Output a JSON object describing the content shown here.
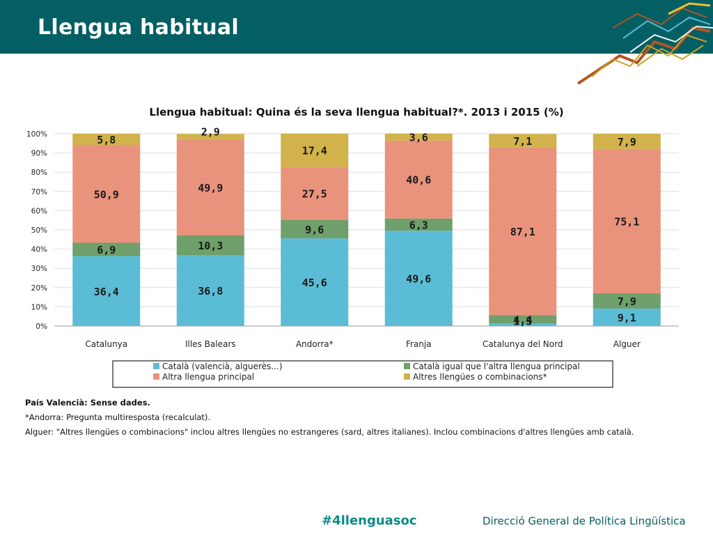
{
  "header": {
    "title": "Llengua habitual"
  },
  "colors": {
    "header_bg": "#035f64",
    "catala": "#5bbcd6",
    "catala_igual": "#6f9f6a",
    "altra": "#e9937c",
    "altres": "#d1b24b"
  },
  "chart_data": {
    "type": "bar",
    "stacked": true,
    "title": "Llengua habitual: Quina és la seva llengua habitual?*. 2013 i 2015 (%)",
    "xlabel": "",
    "ylabel": "",
    "ylim": [
      0,
      100
    ],
    "yticks": [
      "0%",
      "10%",
      "20%",
      "30%",
      "40%",
      "50%",
      "60%",
      "70%",
      "80%",
      "90%",
      "100%"
    ],
    "grid": true,
    "legend_position": "bottom",
    "categories": [
      "Catalunya",
      "Illes Balears",
      "Andorra*",
      "Franja",
      "Catalunya del Nord",
      "Alguer"
    ],
    "series": [
      {
        "name": "Català (valencià, alguerès...)",
        "values": [
          36.4,
          36.8,
          45.6,
          49.6,
          1.3,
          9.1
        ],
        "labels": [
          "36,4",
          "36,8",
          "45,6",
          "49,6",
          "1,3",
          "9,1"
        ]
      },
      {
        "name": "Català igual que l'altra llengua principal",
        "values": [
          6.9,
          10.3,
          9.6,
          6.3,
          4.4,
          7.9
        ],
        "labels": [
          "6,9",
          "10,3",
          "9,6",
          "6,3",
          "4,4",
          "7,9"
        ]
      },
      {
        "name": "Altra llengua principal",
        "values": [
          50.9,
          49.9,
          27.5,
          40.6,
          87.1,
          75.1
        ],
        "labels": [
          "50,9",
          "49,9",
          "27,5",
          "40,6",
          "87,1",
          "75,1"
        ]
      },
      {
        "name": "Altres llengües o combinacions*",
        "values": [
          5.8,
          2.9,
          17.4,
          3.6,
          7.1,
          7.9
        ],
        "labels": [
          "5,8",
          "2,9",
          "17,4",
          "3,6",
          "7,1",
          "7,9"
        ]
      }
    ]
  },
  "notes": {
    "line1": "País Valencià: Sense dades.",
    "line2": "*Andorra: Pregunta multiresposta (recalculat).",
    "line3": "Alguer: \"Altres llengües o combinacions\" inclou  altres llengües no estrangeres (sard, altres italianes). Inclou combinacions d'altres llengües amb català."
  },
  "footer": {
    "hashtag": "#4llenguasoc",
    "org": "Direcció General de Política Lingüística"
  }
}
